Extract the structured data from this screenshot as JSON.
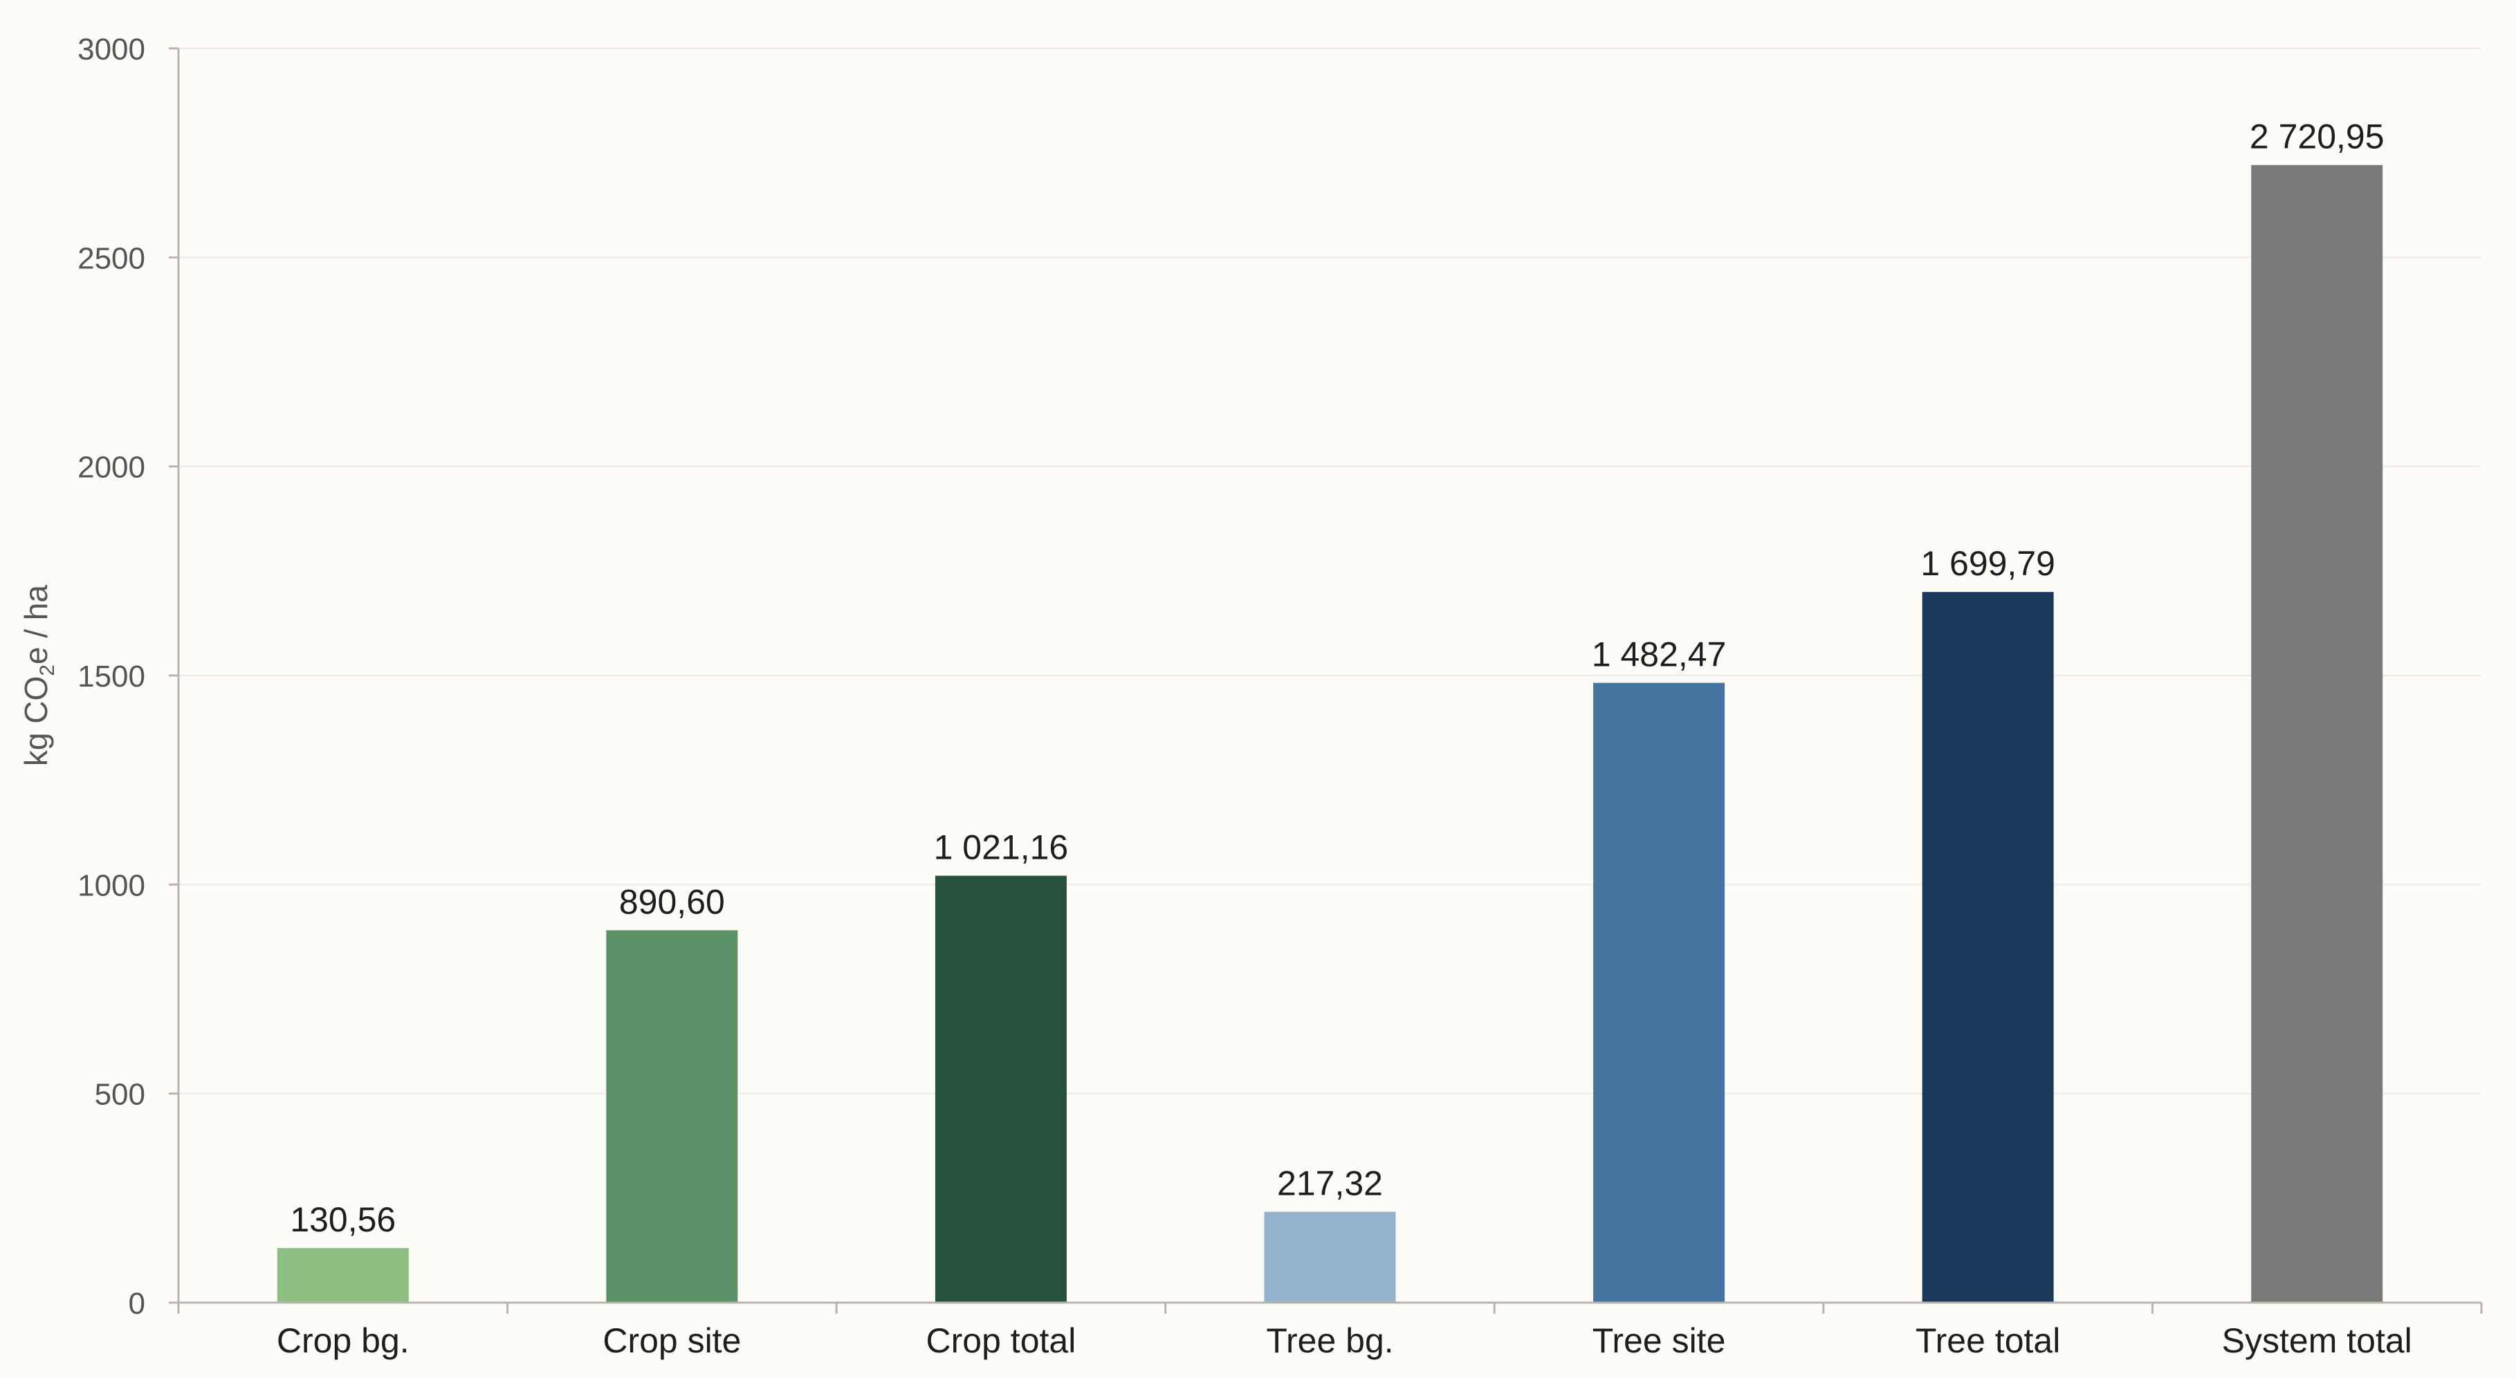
{
  "chart_data": {
    "type": "bar",
    "categories": [
      "Crop bg.",
      "Crop site",
      "Crop total",
      "Tree bg.",
      "Tree site",
      "Tree total",
      "System total"
    ],
    "values": [
      130.56,
      890.6,
      1021.16,
      217.32,
      1482.47,
      1699.79,
      2720.95
    ],
    "value_labels": [
      "130,56",
      "890,60",
      "1 021,16",
      "217,32",
      "1 482,47",
      "1 699,79",
      "2 720,95"
    ],
    "colors": [
      "#8cbf80",
      "#5b9166",
      "#25523a",
      "#94b1cd",
      "#44739f",
      "#1a395a",
      "#7a7a7a"
    ],
    "title": "",
    "xlabel": "",
    "ylabel_prefix": "kg CO",
    "ylabel_subscript": "2",
    "ylabel_suffix": "e / ha",
    "ylim": [
      0,
      3000
    ],
    "yticks": [
      0,
      500,
      1000,
      1500,
      2000,
      2500,
      3000
    ],
    "grid": true,
    "legend": "none"
  }
}
